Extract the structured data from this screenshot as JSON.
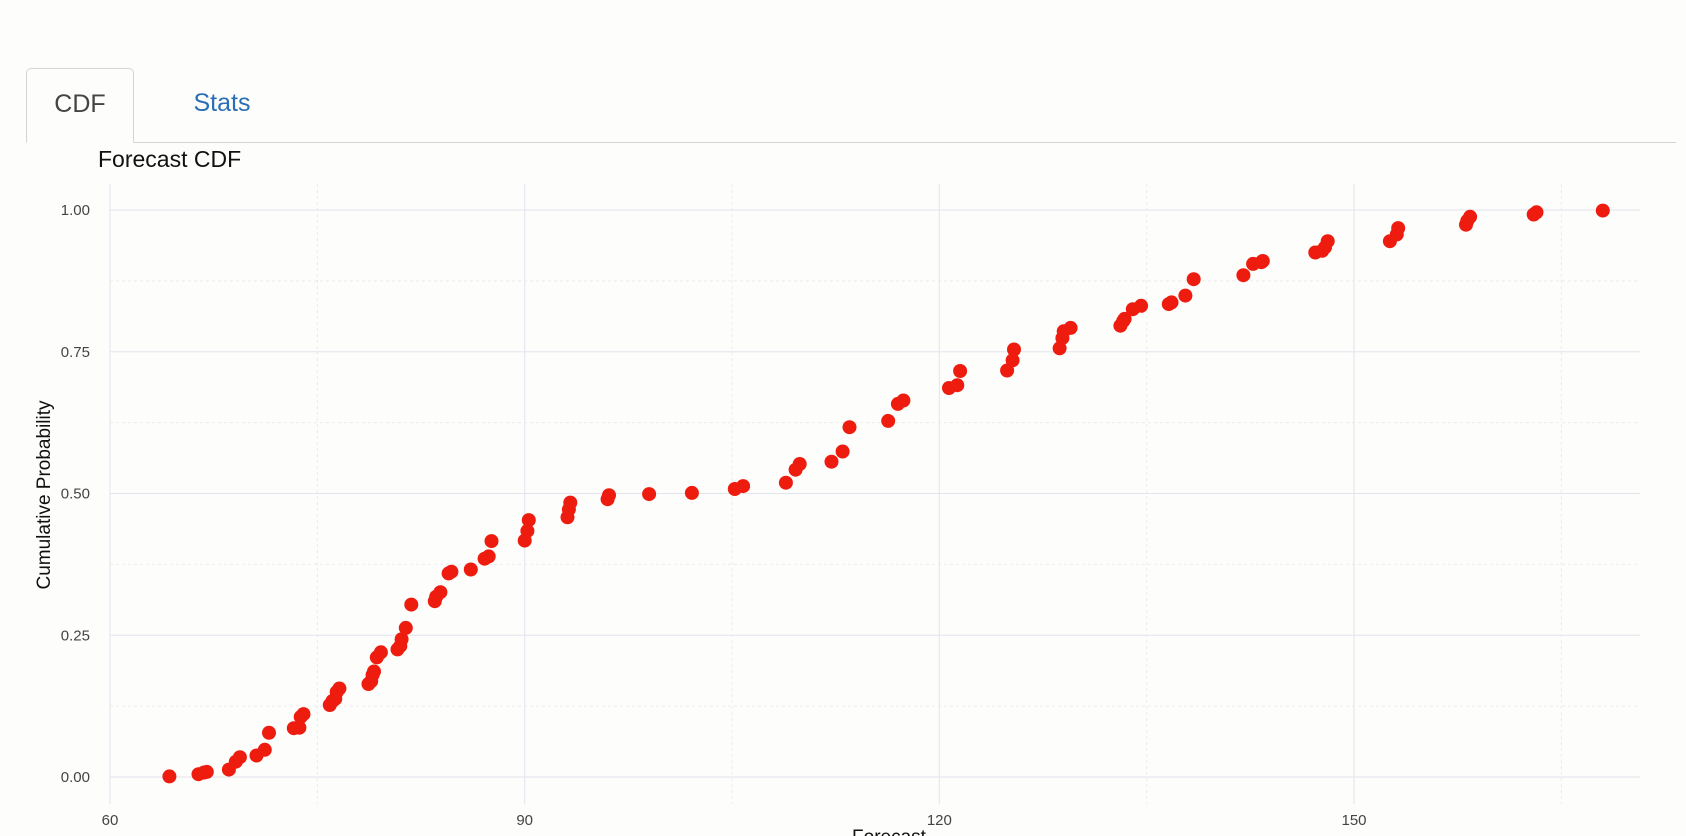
{
  "tabs": [
    {
      "label": "CDF",
      "active": true
    },
    {
      "label": "Stats",
      "active": false
    }
  ],
  "colors": {
    "point": "#ee1c0f",
    "grid_major": "#e4e4ee",
    "grid_minor": "#ececec",
    "accent_tab": "#2a6fb5"
  },
  "chart_data": {
    "type": "scatter",
    "title": "Forecast CDF",
    "xlabel": "Forecast",
    "ylabel": "Cumulative Probability",
    "xlim": [
      60,
      170
    ],
    "ylim": [
      0,
      1
    ],
    "xticks": [
      60,
      90,
      120,
      150
    ],
    "yticks": [
      "0.00",
      "0.25",
      "0.50",
      "0.75",
      "1.00"
    ],
    "grid": true,
    "series": [
      {
        "points": [
          [
            64.3,
            0.001
          ],
          [
            66.4,
            0.005
          ],
          [
            66.8,
            0.008
          ],
          [
            67.0,
            0.009
          ],
          [
            68.6,
            0.013
          ],
          [
            69.1,
            0.027
          ],
          [
            69.4,
            0.035
          ],
          [
            70.6,
            0.038
          ],
          [
            71.2,
            0.048
          ],
          [
            71.5,
            0.078
          ],
          [
            73.3,
            0.086
          ],
          [
            73.7,
            0.087
          ],
          [
            73.8,
            0.106
          ],
          [
            74.0,
            0.111
          ],
          [
            75.9,
            0.127
          ],
          [
            76.1,
            0.134
          ],
          [
            76.3,
            0.138
          ],
          [
            76.4,
            0.15
          ],
          [
            76.6,
            0.156
          ],
          [
            78.7,
            0.164
          ],
          [
            78.9,
            0.169
          ],
          [
            79.0,
            0.18
          ],
          [
            79.1,
            0.186
          ],
          [
            79.3,
            0.211
          ],
          [
            79.6,
            0.22
          ],
          [
            80.8,
            0.225
          ],
          [
            81.0,
            0.231
          ],
          [
            81.1,
            0.243
          ],
          [
            81.4,
            0.263
          ],
          [
            81.8,
            0.304
          ],
          [
            83.5,
            0.31
          ],
          [
            83.6,
            0.318
          ],
          [
            83.9,
            0.326
          ],
          [
            84.5,
            0.359
          ],
          [
            84.7,
            0.362
          ],
          [
            86.1,
            0.366
          ],
          [
            87.1,
            0.385
          ],
          [
            87.4,
            0.389
          ],
          [
            87.6,
            0.416
          ],
          [
            90.0,
            0.417
          ],
          [
            90.2,
            0.434
          ],
          [
            90.3,
            0.453
          ],
          [
            93.1,
            0.458
          ],
          [
            93.2,
            0.472
          ],
          [
            93.3,
            0.484
          ],
          [
            96.0,
            0.49
          ],
          [
            96.1,
            0.497
          ],
          [
            99.0,
            0.499
          ],
          [
            102.1,
            0.501
          ],
          [
            105.2,
            0.508
          ],
          [
            105.8,
            0.513
          ],
          [
            108.9,
            0.519
          ],
          [
            109.6,
            0.542
          ],
          [
            109.9,
            0.552
          ],
          [
            112.2,
            0.556
          ],
          [
            113.0,
            0.574
          ],
          [
            113.5,
            0.617
          ],
          [
            116.3,
            0.628
          ],
          [
            117.0,
            0.658
          ],
          [
            117.4,
            0.664
          ],
          [
            120.7,
            0.686
          ],
          [
            121.3,
            0.691
          ],
          [
            121.5,
            0.716
          ],
          [
            124.9,
            0.717
          ],
          [
            125.3,
            0.735
          ],
          [
            125.4,
            0.754
          ],
          [
            128.7,
            0.756
          ],
          [
            128.9,
            0.774
          ],
          [
            129.0,
            0.786
          ],
          [
            129.5,
            0.792
          ],
          [
            133.1,
            0.796
          ],
          [
            133.3,
            0.804
          ],
          [
            133.4,
            0.808
          ],
          [
            134.0,
            0.825
          ],
          [
            134.6,
            0.831
          ],
          [
            136.6,
            0.834
          ],
          [
            136.8,
            0.837
          ],
          [
            137.8,
            0.849
          ],
          [
            138.4,
            0.878
          ],
          [
            142.0,
            0.885
          ],
          [
            142.7,
            0.905
          ],
          [
            143.3,
            0.908
          ],
          [
            143.4,
            0.91
          ],
          [
            147.2,
            0.925
          ],
          [
            147.7,
            0.928
          ],
          [
            147.9,
            0.934
          ],
          [
            148.1,
            0.945
          ],
          [
            152.6,
            0.945
          ],
          [
            153.1,
            0.957
          ],
          [
            153.2,
            0.968
          ],
          [
            158.1,
            0.974
          ],
          [
            158.2,
            0.981
          ],
          [
            158.4,
            0.988
          ],
          [
            163.0,
            0.992
          ],
          [
            163.2,
            0.996
          ],
          [
            168.0,
            0.999
          ]
        ]
      }
    ]
  }
}
